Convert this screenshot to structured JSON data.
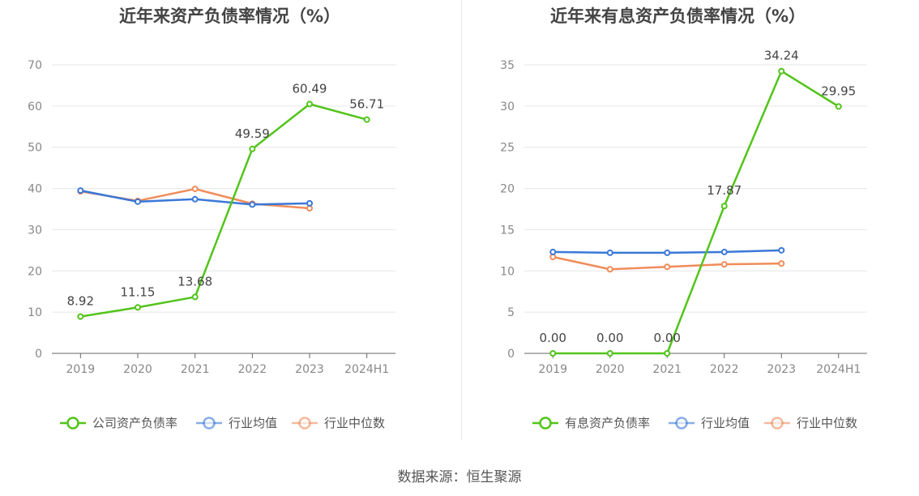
{
  "source_label": "数据来源：恒生聚源",
  "chart_data": [
    {
      "type": "line",
      "title": "近年来资产负债率情况（%）",
      "categories": [
        "2019",
        "2020",
        "2021",
        "2022",
        "2023",
        "2024H1"
      ],
      "ylim": [
        0,
        70
      ],
      "yticks": [
        0,
        10,
        20,
        30,
        40,
        50,
        60,
        70
      ],
      "grid": true,
      "legend_position": "bottom",
      "series": [
        {
          "name": "公司资产负债率",
          "color": "#52c41a",
          "values": [
            8.92,
            11.15,
            13.68,
            49.59,
            60.49,
            56.71
          ],
          "labels": [
            "8.92",
            "11.15",
            "13.68",
            "49.59",
            "60.49",
            "56.71"
          ]
        },
        {
          "name": "行业均值",
          "color": "#3a78d8",
          "values": [
            39.5,
            36.8,
            37.4,
            36.1,
            36.4,
            null
          ]
        },
        {
          "name": "行业中位数",
          "color": "#f08c5a",
          "values": [
            39.3,
            37.0,
            39.9,
            36.3,
            35.2,
            null
          ]
        }
      ]
    },
    {
      "type": "line",
      "title": "近年来有息资产负债率情况（%）",
      "categories": [
        "2019",
        "2020",
        "2021",
        "2022",
        "2023",
        "2024H1"
      ],
      "ylim": [
        0,
        35
      ],
      "yticks": [
        0,
        5,
        10,
        15,
        20,
        25,
        30,
        35
      ],
      "grid": true,
      "legend_position": "bottom",
      "series": [
        {
          "name": "有息资产负债率",
          "color": "#52c41a",
          "values": [
            0.0,
            0.0,
            0.0,
            17.87,
            34.24,
            29.95
          ],
          "labels": [
            "0.00",
            "0.00",
            "0.00",
            "17.87",
            "34.24",
            "29.95"
          ]
        },
        {
          "name": "行业均值",
          "color": "#3a78d8",
          "values": [
            12.3,
            12.2,
            12.2,
            12.3,
            12.5,
            null
          ]
        },
        {
          "name": "行业中位数",
          "color": "#f08c5a",
          "values": [
            11.7,
            10.2,
            10.5,
            10.8,
            10.9,
            null
          ]
        }
      ]
    }
  ]
}
